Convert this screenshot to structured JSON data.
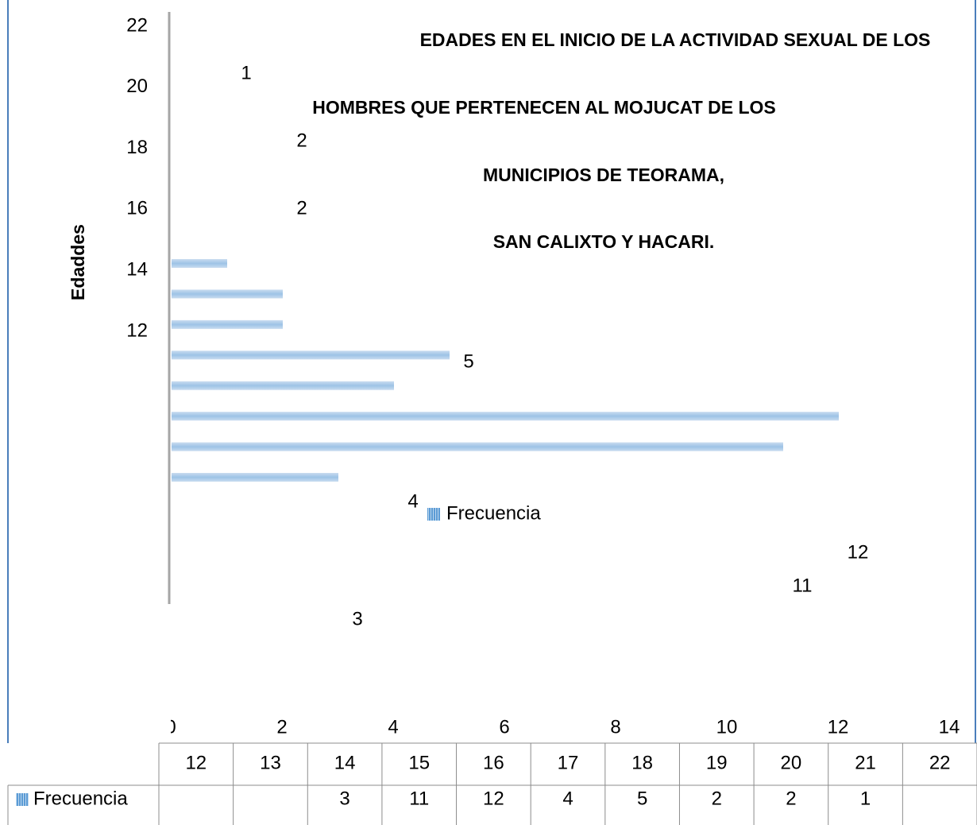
{
  "chart_data": {
    "type": "bar",
    "title": [
      "EDADES EN EL INICIO DE LA ACTIVIDAD SEXUAL DE LOS",
      "HOMBRES QUE PERTENECEN AL MOJUCAT DE LOS",
      "MUNICIPIOS DE TEORAMA,",
      "SAN CALIXTO Y HACARI."
    ],
    "y_label": "Edaddes",
    "categories": [
      12,
      13,
      14,
      15,
      16,
      17,
      18,
      19,
      20,
      21,
      22
    ],
    "series": [
      {
        "name": "Frecuencia",
        "color": "#9dc3e6",
        "values": [
          null,
          null,
          3,
          11,
          12,
          4,
          5,
          2,
          2,
          1,
          null
        ]
      }
    ],
    "yticks": [
      22,
      20,
      18,
      16,
      14,
      12
    ],
    "xlim": [
      0,
      14
    ],
    "xticks": [
      0,
      2,
      4,
      6,
      8,
      10,
      12,
      14
    ]
  }
}
